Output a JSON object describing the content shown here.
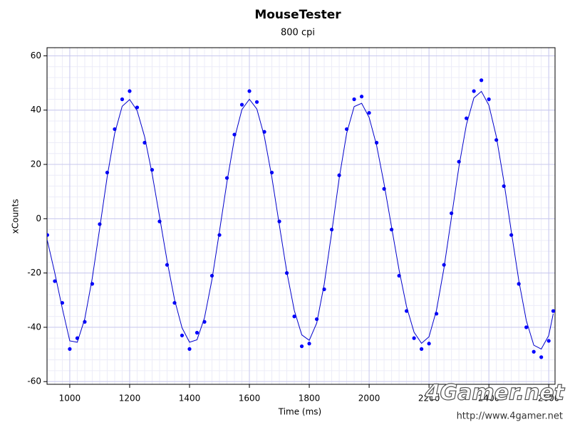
{
  "chart_data": {
    "type": "scatter",
    "title": "MouseTester",
    "subtitle": "800 cpi",
    "xlabel": "Time (ms)",
    "ylabel": "xCounts",
    "watermark": "4Gamer.net",
    "watermark_url": "http://www.4gamer.net",
    "x": [
      925,
      950,
      975,
      1000,
      1025,
      1050,
      1075,
      1100,
      1125,
      1150,
      1175,
      1200,
      1225,
      1250,
      1275,
      1300,
      1325,
      1350,
      1375,
      1400,
      1425,
      1450,
      1475,
      1500,
      1525,
      1550,
      1575,
      1600,
      1625,
      1650,
      1675,
      1700,
      1725,
      1750,
      1775,
      1800,
      1825,
      1850,
      1875,
      1900,
      1925,
      1950,
      1975,
      2000,
      2025,
      2050,
      2075,
      2100,
      2125,
      2150,
      2175,
      2200,
      2225,
      2250,
      2275,
      2300,
      2325,
      2350,
      2375,
      2400,
      2425,
      2450,
      2475,
      2500,
      2525,
      2550,
      2575,
      2600,
      2615
    ],
    "series": [
      {
        "mode": "markers",
        "color": "#0000ff",
        "values": [
          -6,
          -23,
          -31,
          -48,
          -44,
          -38,
          -24,
          -2,
          17,
          33,
          44,
          47,
          41,
          28,
          18,
          -1,
          -17,
          -31,
          -43,
          -48,
          -42,
          -38,
          -21,
          -6,
          15,
          31,
          42,
          47,
          43,
          32,
          17,
          -1,
          -20,
          -36,
          -47,
          -46,
          -37,
          -26,
          -4,
          16,
          33,
          44,
          45,
          39,
          28,
          11,
          -4,
          -21,
          -34,
          -44,
          -48,
          -46,
          -35,
          -17,
          2,
          21,
          37,
          47,
          51,
          44,
          29,
          12,
          -6,
          -24,
          -40,
          -49,
          -51,
          -45,
          -34
        ]
      },
      {
        "mode": "lines",
        "color": "#0000cc",
        "values": [
          -8,
          -20,
          -33,
          -45,
          -45.5,
          -36.9,
          -22,
          -3.5,
          15.5,
          31.4,
          41.4,
          43.9,
          39.8,
          30.2,
          16.6,
          0.7,
          -15.5,
          -29.8,
          -40.2,
          -45.5,
          -44.6,
          -36.5,
          -22.4,
          -4.7,
          13.5,
          29.5,
          40.2,
          44,
          40.4,
          30.3,
          15.3,
          -2.3,
          -19.6,
          -33.8,
          -42.8,
          -44.8,
          -38.4,
          -24.1,
          -5,
          14.9,
          31.5,
          41.3,
          42.5,
          37.3,
          27,
          12.8,
          -3.1,
          -18.9,
          -32.4,
          -41.8,
          -45.9,
          -43.5,
          -33.7,
          -18.2,
          0.5,
          19.2,
          34.7,
          44.5,
          46.9,
          41.8,
          30.2,
          13.8,
          -4.8,
          -22.8,
          -37.5,
          -46.6,
          -48,
          -43,
          -35
        ]
      }
    ],
    "xlim": [
      924,
      2621
    ],
    "ylim": [
      -61,
      63
    ],
    "xticks": [
      1000,
      1200,
      1400,
      1600,
      1800,
      2000,
      2200,
      2400,
      2600
    ],
    "yticks": [
      -60,
      -40,
      -20,
      0,
      20,
      40,
      60
    ],
    "grid": true,
    "minor_grid": true
  }
}
